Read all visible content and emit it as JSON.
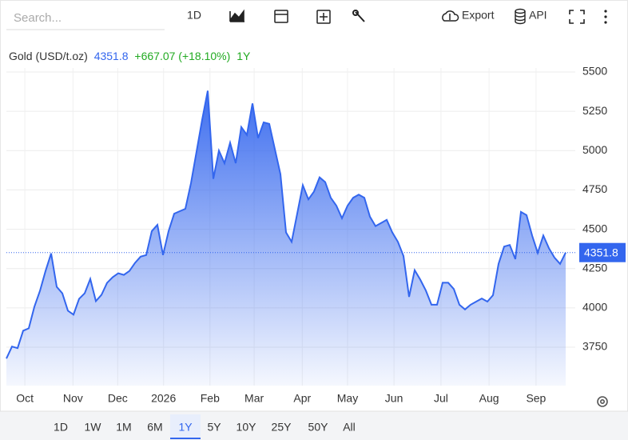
{
  "toolbar": {
    "search_placeholder": "Search...",
    "interval": "1D",
    "export": "Export",
    "api": "API"
  },
  "chart_data": {
    "type": "area",
    "name": "Gold (USD/t.oz)",
    "change": "+667.07 (+18.10%)",
    "period": "1Y",
    "color": "#3366ee",
    "values": [
      3678,
      3754,
      3744,
      3855,
      3870,
      4007,
      4108,
      4235,
      4346,
      4134,
      4093,
      3982,
      3957,
      4058,
      4093,
      4184,
      4043,
      4083,
      4159,
      4195,
      4220,
      4210,
      4235,
      4286,
      4326,
      4336,
      4488,
      4528,
      4336,
      4488,
      4599,
      4615,
      4630,
      4792,
      4994,
      5196,
      5380,
      4820,
      5000,
      4920,
      5050,
      4920,
      5150,
      5100,
      5300,
      5080,
      5180,
      5170,
      5010,
      4850,
      4480,
      4420,
      4600,
      4780,
      4690,
      4740,
      4830,
      4800,
      4700,
      4650,
      4570,
      4650,
      4700,
      4720,
      4700,
      4580,
      4520,
      4540,
      4560,
      4480,
      4420,
      4330,
      4070,
      4240,
      4180,
      4110,
      4020,
      4020,
      4160,
      4160,
      4120,
      4020,
      3990,
      4020,
      4040,
      4060,
      4040,
      4080,
      4280,
      4390,
      4400,
      4310,
      4610,
      4590,
      4460,
      4350,
      4460,
      4380,
      4320,
      4280,
      4351.8
    ],
    "xlim": [
      0,
      100
    ],
    "xticks": [
      {
        "value": 3.3,
        "label": "Oct"
      },
      {
        "value": 11.9,
        "label": "Nov"
      },
      {
        "value": 19.9,
        "label": "Dec"
      },
      {
        "value": 28.1,
        "label": "2026"
      },
      {
        "value": 36.4,
        "label": "Feb"
      },
      {
        "value": 44.3,
        "label": "Mar"
      },
      {
        "value": 52.9,
        "label": "Apr"
      },
      {
        "value": 61,
        "label": "May"
      },
      {
        "value": 69.3,
        "label": "Jun"
      },
      {
        "value": 77.7,
        "label": "Jul"
      },
      {
        "value": 86.3,
        "label": "Aug"
      },
      {
        "value": 94.7,
        "label": "Sep"
      }
    ],
    "ylim": [
      3506,
      5576
    ],
    "yticks": [
      3750,
      4000,
      4250,
      4500,
      4750,
      5000,
      5250,
      5500
    ],
    "grid": true
  },
  "range_buttons": [
    "1D",
    "1W",
    "1M",
    "6M",
    "1Y",
    "5Y",
    "10Y",
    "25Y",
    "50Y",
    "All"
  ],
  "selected_range": 4
}
